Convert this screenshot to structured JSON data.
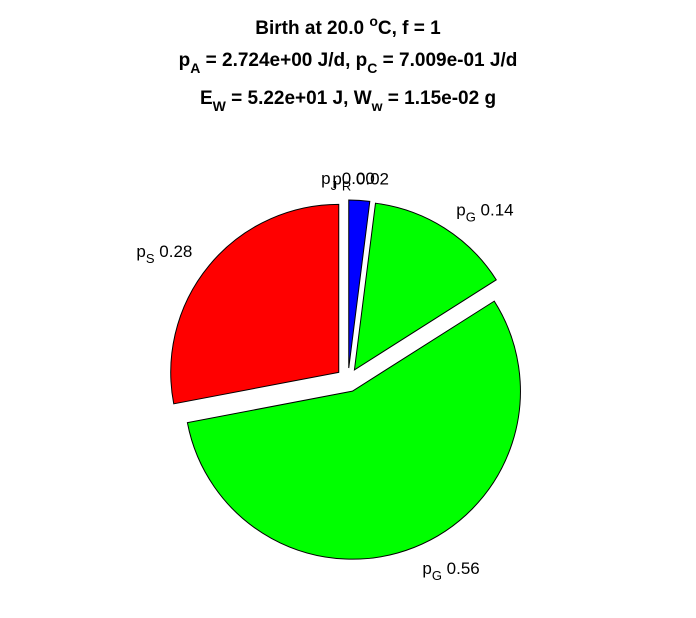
{
  "chart_data": {
    "type": "pie",
    "title": {
      "line1": {
        "prefix": "Birth at 20.0 ",
        "superscript": "o",
        "suffix": "C, f = 1"
      },
      "line2": {
        "pa_sym": "p",
        "pa_sub": "A",
        "pa_val": " = 2.724e+00 J/d, ",
        "pc_sym": "p",
        "pc_sub": "C",
        "pc_val": " = 7.009e-01 J/d"
      },
      "line3": {
        "ew_sym": "E",
        "ew_sub": "W",
        "ew_val": " = 5.22e+01 J, ",
        "ww_sym": "W",
        "ww_sub": "w",
        "ww_val": " = 1.15e-02 g"
      }
    },
    "slices": [
      {
        "symbol": "p",
        "subscript": "R",
        "value": 0.02,
        "label_value": "0.02",
        "color": "#0000ff",
        "explode": true
      },
      {
        "symbol": "p",
        "subscript": "G",
        "value": 0.14,
        "label_value": "0.14",
        "color": "#00ff00",
        "explode": true
      },
      {
        "symbol": "p",
        "subscript": "G",
        "value": 0.56,
        "label_value": "0.56",
        "color": "#00ff00",
        "explode": true
      },
      {
        "symbol": "p",
        "subscript": "S",
        "value": 0.28,
        "label_value": "0.28",
        "color": "#ff0000",
        "explode": true
      },
      {
        "symbol": "p",
        "subscript": "J",
        "value": 0.0,
        "label_value": "0.00",
        "color": "#ffff00",
        "explode": true
      }
    ],
    "legend": "none",
    "grid": false
  }
}
